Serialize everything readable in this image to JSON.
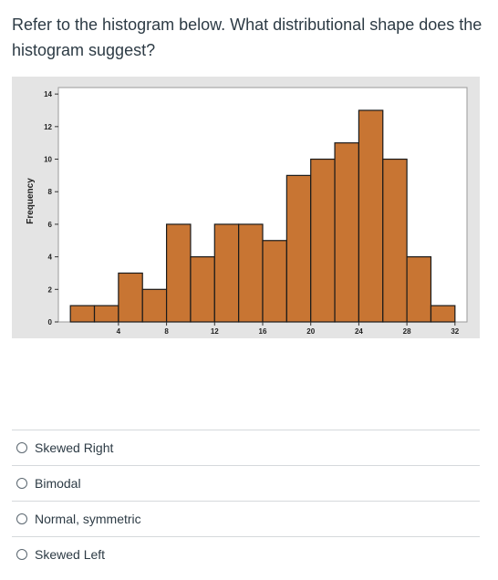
{
  "question": {
    "text": "Refer to the histogram below.  What distributional shape does the histogram suggest?"
  },
  "chart_data": {
    "type": "bar",
    "bin_width": 2,
    "bin_start": 0,
    "values": [
      1,
      1,
      3,
      2,
      6,
      4,
      6,
      6,
      5,
      9,
      10,
      11,
      13,
      10,
      4,
      1
    ],
    "xticks": [
      4,
      8,
      12,
      16,
      20,
      24,
      28,
      32
    ],
    "yticks": [
      0,
      2,
      4,
      6,
      8,
      10,
      12,
      14
    ],
    "ylabel": "Frequency",
    "xlabel": "",
    "ylim": [
      0,
      14.4
    ],
    "bar_color": "#c87533",
    "bar_edge_color": "#1a1a1a",
    "plot_background": "#ffffff",
    "outer_background": "#e4e4e4",
    "grid": false
  },
  "answers": [
    {
      "label": "Skewed Right"
    },
    {
      "label": "Bimodal"
    },
    {
      "label": "Normal, symmetric"
    },
    {
      "label": "Skewed Left"
    }
  ]
}
